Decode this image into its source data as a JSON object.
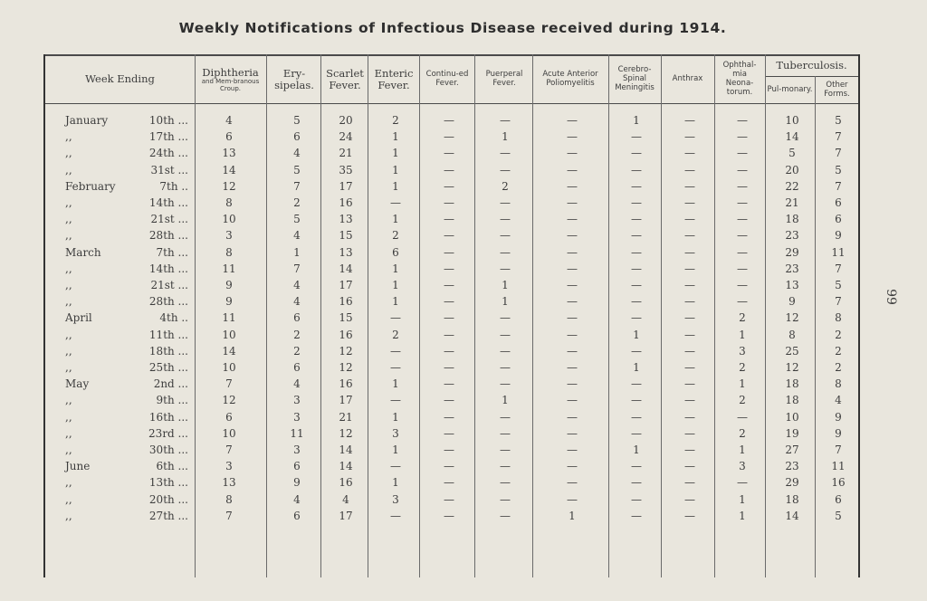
{
  "title": "Weekly Notifications of Infectious Disease received during 1914.",
  "page_number": "99",
  "header": {
    "week_ending": "Week Ending",
    "diphtheria": "Diphtheria",
    "diphtheria_sub": "and Mem-branous Croup.",
    "erysipelas": "Ery-sipelas.",
    "scarlet": "Scarlet Fever.",
    "enteric": "Enteric Fever.",
    "continued": "Continu-ed Fever.",
    "puerperal": "Puerperal Fever.",
    "polio": "Acute Anterior Poliomyelitis",
    "cerebro": "Cerebro-Spinal Meningitis",
    "anthrax": "Anthrax",
    "ophthal": "Ophthal-mia Neona-torum.",
    "tuberculosis": "Tuberculosis.",
    "pulmonary": "Pul-monary.",
    "other_forms": "Other Forms."
  },
  "dash": "—",
  "rows": [
    {
      "month": "January",
      "day": "10th ...",
      "v": [
        "4",
        "5",
        "20",
        "2",
        "—",
        "—",
        "—",
        "1",
        "—",
        "—",
        "10",
        "5"
      ]
    },
    {
      "month": ",,",
      "day": "17th ...",
      "v": [
        "6",
        "6",
        "24",
        "1",
        "—",
        "1",
        "—",
        "—",
        "—",
        "—",
        "14",
        "7"
      ]
    },
    {
      "month": ",,",
      "day": "24th ...",
      "v": [
        "13",
        "4",
        "21",
        "1",
        "—",
        "—",
        "—",
        "—",
        "—",
        "—",
        "5",
        "7"
      ]
    },
    {
      "month": ",,",
      "day": "31st ...",
      "v": [
        "14",
        "5",
        "35",
        "1",
        "—",
        "—",
        "—",
        "—",
        "—",
        "—",
        "20",
        "5"
      ]
    },
    {
      "month": "February",
      "day": "7th ..",
      "v": [
        "12",
        "7",
        "17",
        "1",
        "—",
        "2",
        "—",
        "—",
        "—",
        "—",
        "22",
        "7"
      ]
    },
    {
      "month": ",,",
      "day": "14th ...",
      "v": [
        "8",
        "2",
        "16",
        "—",
        "—",
        "—",
        "—",
        "—",
        "—",
        "—",
        "21",
        "6"
      ]
    },
    {
      "month": ",,",
      "day": "21st ...",
      "v": [
        "10",
        "5",
        "13",
        "1",
        "—",
        "—",
        "—",
        "—",
        "—",
        "—",
        "18",
        "6"
      ]
    },
    {
      "month": ",,",
      "day": "28th ...",
      "v": [
        "3",
        "4",
        "15",
        "2",
        "—",
        "—",
        "—",
        "—",
        "—",
        "—",
        "23",
        "9"
      ]
    },
    {
      "month": "March",
      "day": "7th ...",
      "v": [
        "8",
        "1",
        "13",
        "6",
        "—",
        "—",
        "—",
        "—",
        "—",
        "—",
        "29",
        "11"
      ]
    },
    {
      "month": ",,",
      "day": "14th ...",
      "v": [
        "11",
        "7",
        "14",
        "1",
        "—",
        "—",
        "—",
        "—",
        "—",
        "—",
        "23",
        "7"
      ]
    },
    {
      "month": ",,",
      "day": "21st ...",
      "v": [
        "9",
        "4",
        "17",
        "1",
        "—",
        "1",
        "—",
        "—",
        "—",
        "—",
        "13",
        "5"
      ]
    },
    {
      "month": ",,",
      "day": "28th ...",
      "v": [
        "9",
        "4",
        "16",
        "1",
        "—",
        "1",
        "—",
        "—",
        "—",
        "—",
        "9",
        "7"
      ]
    },
    {
      "month": "April",
      "day": "4th ..",
      "v": [
        "11",
        "6",
        "15",
        "—",
        "—",
        "—",
        "—",
        "—",
        "—",
        "2",
        "12",
        "8"
      ]
    },
    {
      "month": ",,",
      "day": "11th ...",
      "v": [
        "10",
        "2",
        "16",
        "2",
        "—",
        "—",
        "—",
        "1",
        "—",
        "1",
        "8",
        "2"
      ]
    },
    {
      "month": ",,",
      "day": "18th ...",
      "v": [
        "14",
        "2",
        "12",
        "—",
        "—",
        "—",
        "—",
        "—",
        "—",
        "3",
        "25",
        "2"
      ]
    },
    {
      "month": ",,",
      "day": "25th ...",
      "v": [
        "10",
        "6",
        "12",
        "—",
        "—",
        "—",
        "—",
        "1",
        "—",
        "2",
        "12",
        "2"
      ]
    },
    {
      "month": "May",
      "day": "2nd ...",
      "v": [
        "7",
        "4",
        "16",
        "1",
        "—",
        "—",
        "—",
        "—",
        "—",
        "1",
        "18",
        "8"
      ]
    },
    {
      "month": ",,",
      "day": "9th ...",
      "v": [
        "12",
        "3",
        "17",
        "—",
        "—",
        "1",
        "—",
        "—",
        "—",
        "2",
        "18",
        "4"
      ]
    },
    {
      "month": ",,",
      "day": "16th ...",
      "v": [
        "6",
        "3",
        "21",
        "1",
        "—",
        "—",
        "—",
        "—",
        "—",
        "—",
        "10",
        "9"
      ]
    },
    {
      "month": ",,",
      "day": "23rd ...",
      "v": [
        "10",
        "11",
        "12",
        "3",
        "—",
        "—",
        "—",
        "—",
        "—",
        "2",
        "19",
        "9"
      ]
    },
    {
      "month": ",,",
      "day": "30th ...",
      "v": [
        "7",
        "3",
        "14",
        "1",
        "—",
        "—",
        "—",
        "1",
        "—",
        "1",
        "27",
        "7"
      ]
    },
    {
      "month": "June",
      "day": "6th ...",
      "v": [
        "3",
        "6",
        "14",
        "—",
        "—",
        "—",
        "—",
        "—",
        "—",
        "3",
        "23",
        "11"
      ]
    },
    {
      "month": ",,",
      "day": "13th ...",
      "v": [
        "13",
        "9",
        "16",
        "1",
        "—",
        "—",
        "—",
        "—",
        "—",
        "—",
        "29",
        "16"
      ]
    },
    {
      "month": ",,",
      "day": "20th ...",
      "v": [
        "8",
        "4",
        "4",
        "3",
        "—",
        "—",
        "—",
        "—",
        "—",
        "1",
        "18",
        "6"
      ]
    },
    {
      "month": ",,",
      "day": "27th ...",
      "v": [
        "7",
        "6",
        "17",
        "—",
        "—",
        "—",
        "1",
        "—",
        "—",
        "1",
        "14",
        "5"
      ]
    }
  ]
}
